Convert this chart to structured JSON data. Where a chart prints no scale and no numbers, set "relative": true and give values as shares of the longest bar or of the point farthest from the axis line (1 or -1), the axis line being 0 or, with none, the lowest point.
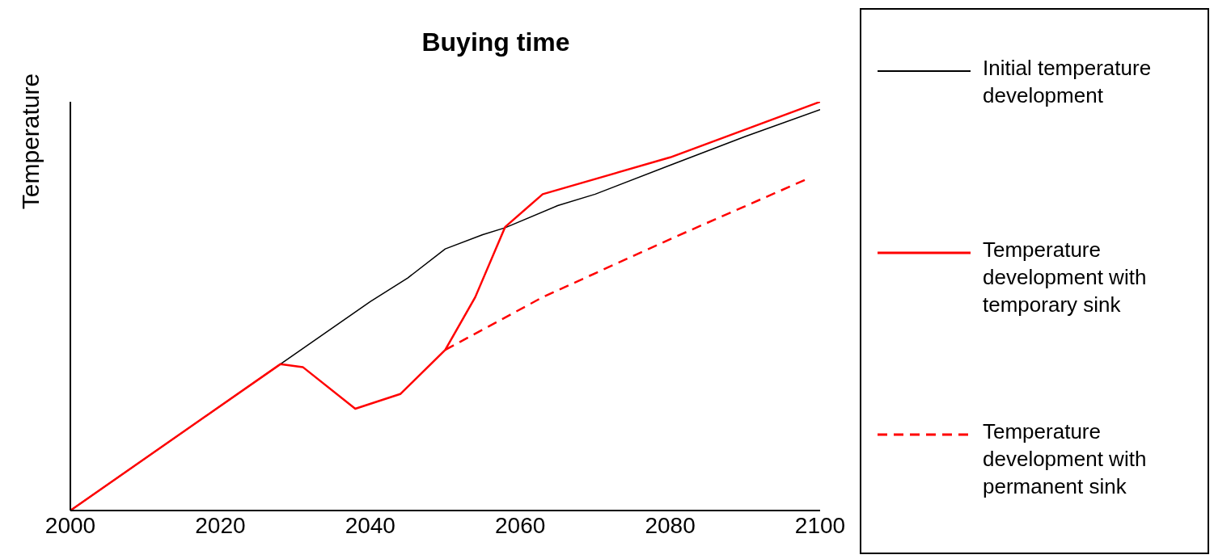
{
  "chart_data": {
    "type": "line",
    "title": "Buying time",
    "ylabel": "Temperature",
    "relative": true,
    "xlim": [
      2000,
      2100
    ],
    "xticks": [
      2000,
      2020,
      2040,
      2060,
      2080,
      2100
    ],
    "grid": false,
    "legend": "right",
    "marker": "none",
    "series": [
      {
        "name": "Initial temperature development",
        "color": "#000000",
        "line_style": "solid",
        "x": [
          2000,
          2028,
          2040,
          2045,
          2050,
          2055,
          2058,
          2065,
          2070,
          2080,
          2090,
          2100
        ],
        "values": [
          0,
          0.358,
          0.511,
          0.569,
          0.64,
          0.675,
          0.692,
          0.746,
          0.774,
          0.845,
          0.915,
          0.981
        ]
      },
      {
        "name": "Temperature development with temporary sink",
        "color": "#ff0000",
        "line_style": "solid",
        "x": [
          2000,
          2028,
          2031,
          2038,
          2044,
          2050,
          2054,
          2058,
          2063,
          2080,
          2100
        ],
        "values": [
          0,
          0.358,
          0.351,
          0.249,
          0.285,
          0.393,
          0.522,
          0.694,
          0.774,
          0.864,
          1
        ]
      },
      {
        "name": "Temperature development with permanent sink",
        "color": "#ff0000",
        "line_style": "dashed",
        "x": [
          2050,
          2063,
          2080,
          2098
        ],
        "values": [
          0.393,
          0.522,
          0.664,
          0.809
        ]
      }
    ]
  }
}
